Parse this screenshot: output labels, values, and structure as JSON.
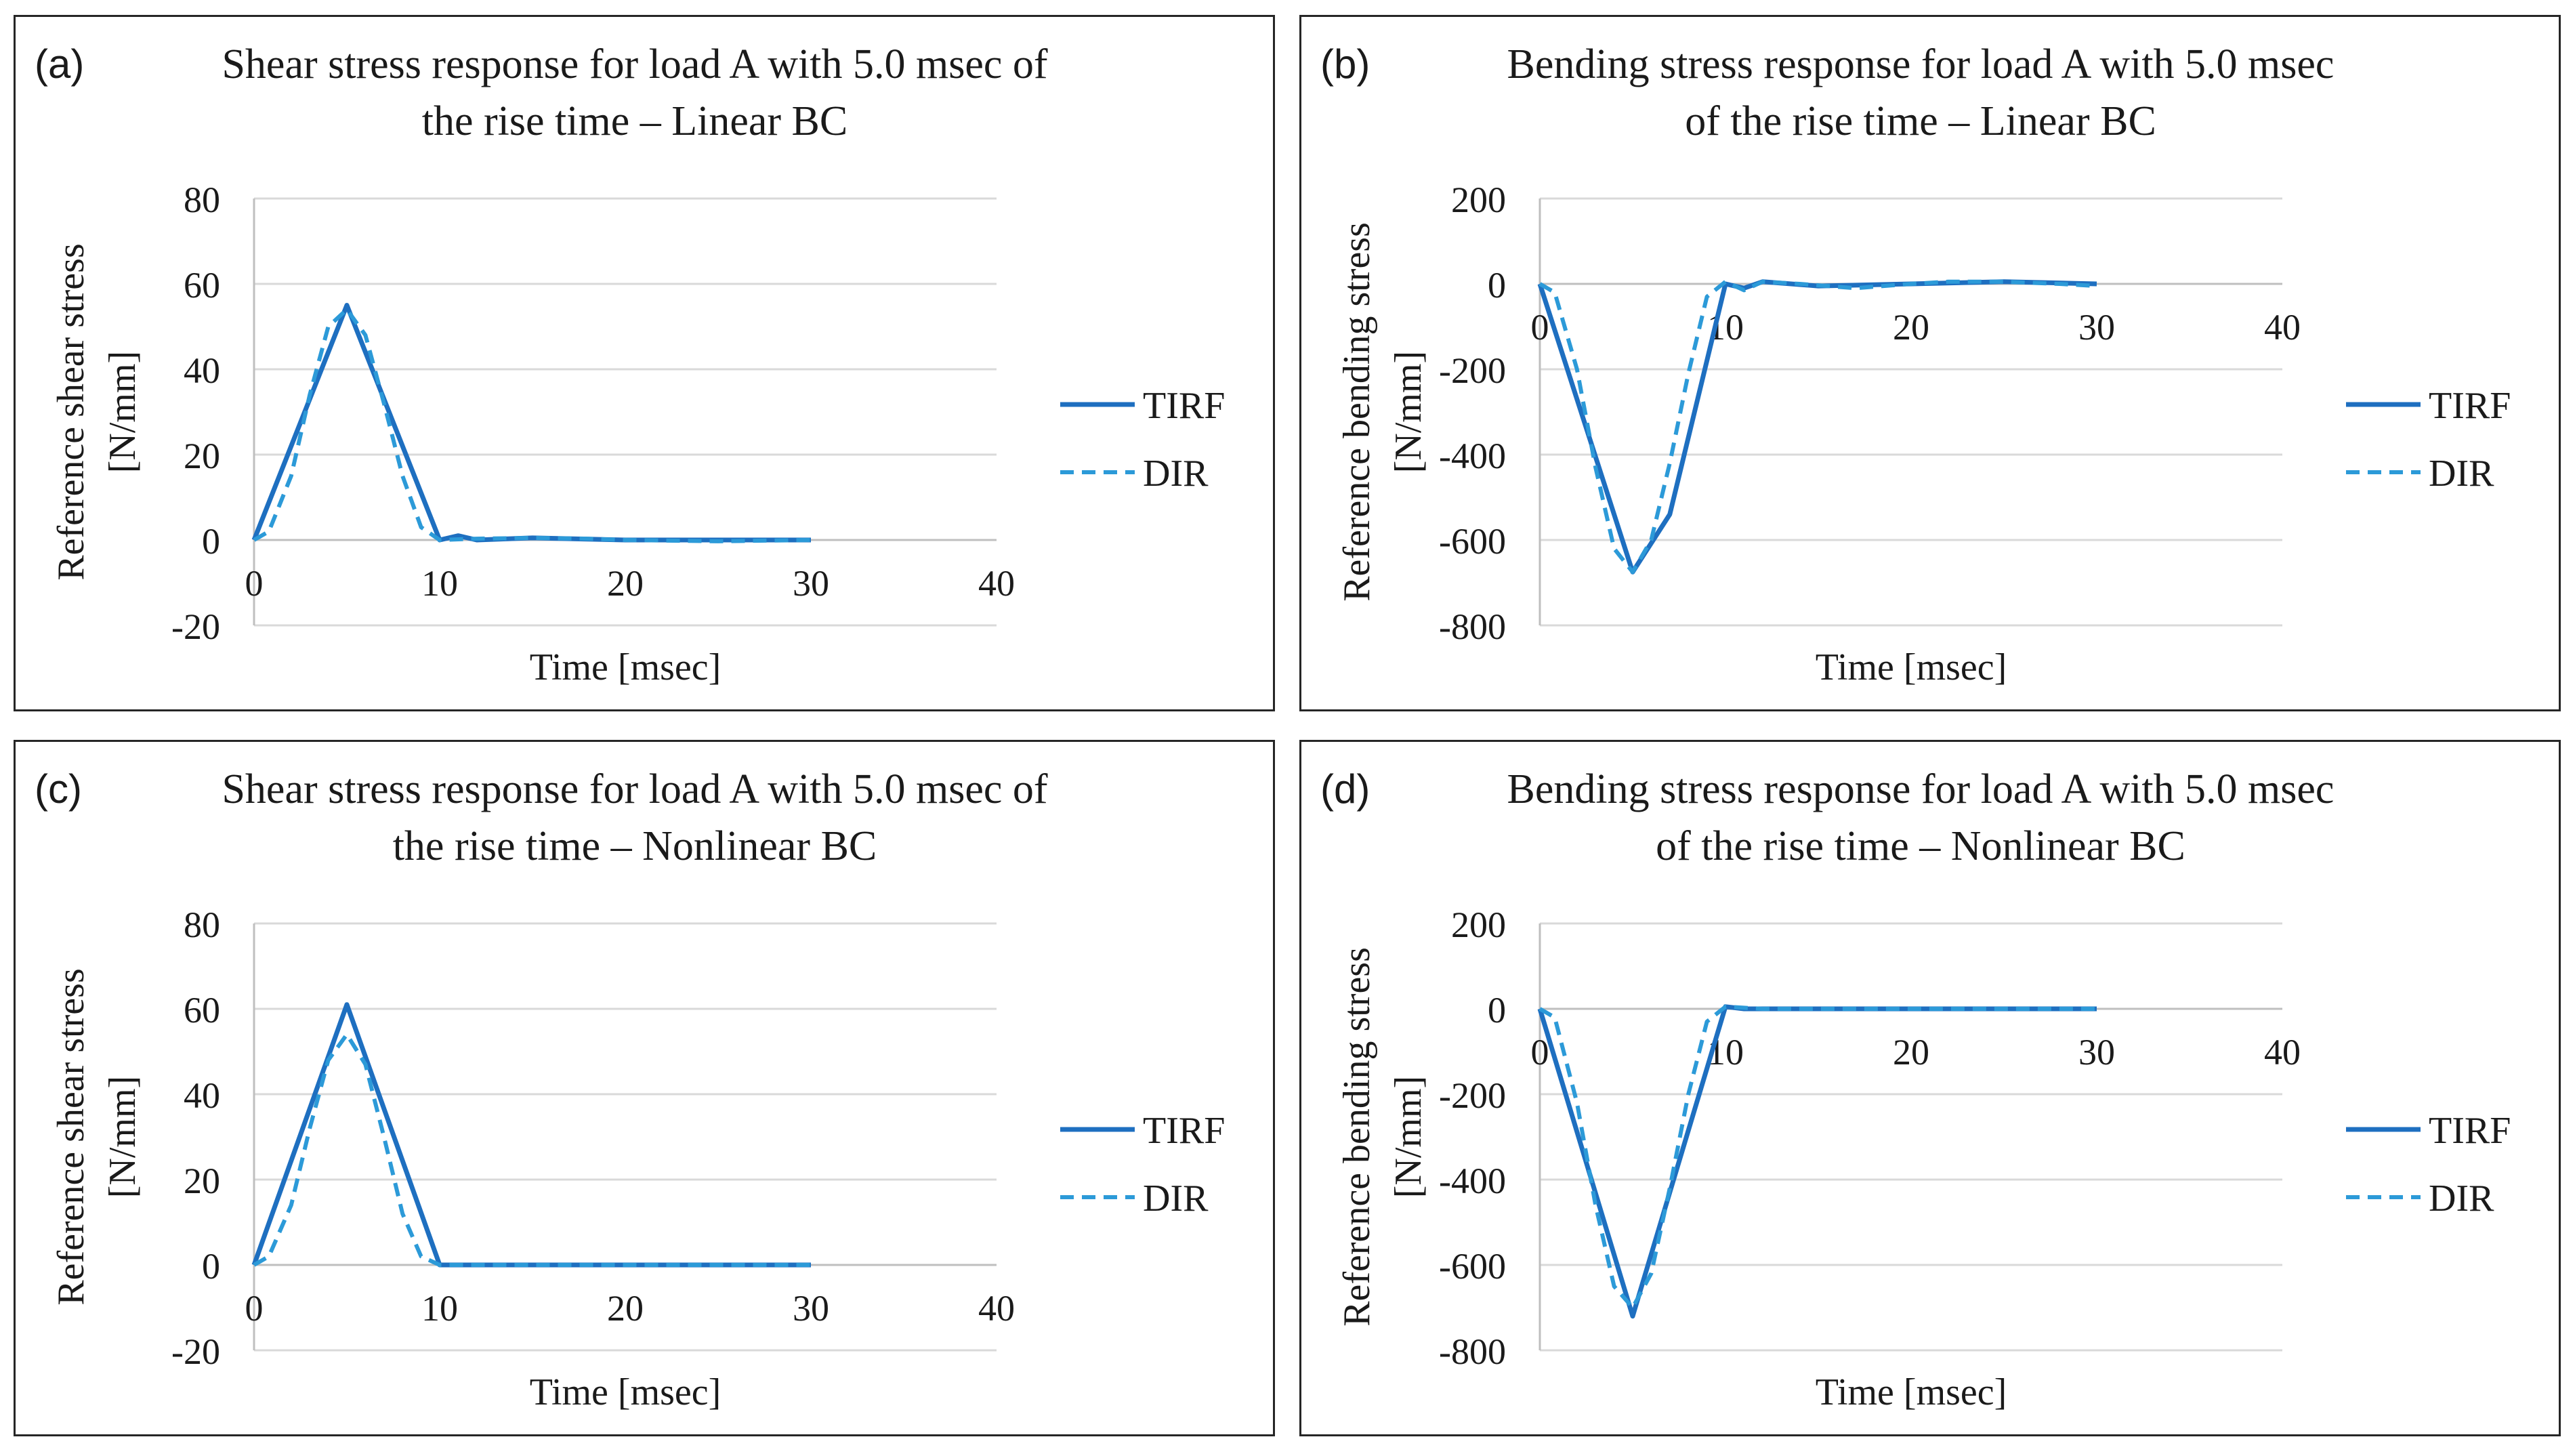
{
  "colors": {
    "tirf": "#1e6fc0",
    "dir": "#2c9ad8",
    "grid": "#d9d9d9",
    "axis": "#bfbfbf",
    "text": "#1a1a1a"
  },
  "chart_data": [
    {
      "panel": "(a)",
      "type": "line",
      "title_lines": [
        "Shear stress response for load A with 5.0 msec of",
        "the rise time – Linear BC"
      ],
      "xlabel": "Time [msec]",
      "ylabel_lines": [
        "Reference shear stress",
        "[N/mm]"
      ],
      "xlim": [
        0,
        40
      ],
      "ylim": [
        -20,
        80
      ],
      "xticks": [
        0,
        10,
        20,
        30,
        40
      ],
      "yticks": [
        -20,
        0,
        20,
        40,
        60,
        80
      ],
      "legend": [
        "TIRF",
        "DIR"
      ],
      "legend_position": "right",
      "series": [
        {
          "name": "TIRF",
          "style": "solid",
          "points": [
            [
              0,
              0
            ],
            [
              5,
              55
            ],
            [
              10,
              0
            ],
            [
              11,
              1
            ],
            [
              12,
              0
            ],
            [
              15,
              0.5
            ],
            [
              20,
              0
            ],
            [
              25,
              0
            ],
            [
              30,
              0
            ]
          ]
        },
        {
          "name": "DIR",
          "style": "dashed",
          "points": [
            [
              0,
              0
            ],
            [
              0.8,
              2
            ],
            [
              2,
              15
            ],
            [
              3,
              34
            ],
            [
              4,
              50
            ],
            [
              5,
              54
            ],
            [
              6,
              48
            ],
            [
              7,
              32
            ],
            [
              8,
              15
            ],
            [
              9,
              3
            ],
            [
              10,
              0
            ],
            [
              12,
              0.3
            ],
            [
              15,
              0.5
            ],
            [
              18,
              0.3
            ],
            [
              20,
              0
            ],
            [
              25,
              -0.3
            ],
            [
              30,
              0
            ]
          ]
        }
      ]
    },
    {
      "panel": "(b)",
      "type": "line",
      "title_lines": [
        "Bending stress response for load A with 5.0 msec",
        "of the rise time – Linear BC"
      ],
      "xlabel": "Time [msec]",
      "ylabel_lines": [
        "Reference bending stress",
        "[N/mm]"
      ],
      "xlim": [
        0,
        40
      ],
      "ylim": [
        -800,
        200
      ],
      "xticks": [
        0,
        10,
        20,
        30,
        40
      ],
      "yticks": [
        -800,
        -600,
        -400,
        -200,
        0,
        200
      ],
      "legend": [
        "TIRF",
        "DIR"
      ],
      "legend_position": "right",
      "series": [
        {
          "name": "TIRF",
          "style": "solid",
          "points": [
            [
              0,
              0
            ],
            [
              5,
              -675
            ],
            [
              7,
              -540
            ],
            [
              10,
              0
            ],
            [
              11,
              -10
            ],
            [
              12,
              5
            ],
            [
              15,
              -5
            ],
            [
              20,
              0
            ],
            [
              25,
              5
            ],
            [
              30,
              0
            ]
          ]
        },
        {
          "name": "DIR",
          "style": "dashed",
          "points": [
            [
              0,
              0
            ],
            [
              0.8,
              -20
            ],
            [
              2,
              -200
            ],
            [
              3,
              -430
            ],
            [
              4,
              -620
            ],
            [
              5,
              -675
            ],
            [
              6,
              -600
            ],
            [
              7,
              -420
            ],
            [
              8,
              -210
            ],
            [
              9,
              -30
            ],
            [
              10,
              5
            ],
            [
              11,
              -15
            ],
            [
              12,
              5
            ],
            [
              14,
              0
            ],
            [
              17,
              -10
            ],
            [
              20,
              0
            ],
            [
              22,
              5
            ],
            [
              25,
              5
            ],
            [
              28,
              0
            ],
            [
              30,
              -5
            ]
          ]
        }
      ]
    },
    {
      "panel": "(c)",
      "type": "line",
      "title_lines": [
        "Shear stress response for load A with 5.0 msec of",
        "the rise time – Nonlinear BC"
      ],
      "xlabel": "Time [msec]",
      "ylabel_lines": [
        "Reference shear stress",
        "[N/mm]"
      ],
      "xlim": [
        0,
        40
      ],
      "ylim": [
        -20,
        80
      ],
      "xticks": [
        0,
        10,
        20,
        30,
        40
      ],
      "yticks": [
        -20,
        0,
        20,
        40,
        60,
        80
      ],
      "legend": [
        "TIRF",
        "DIR"
      ],
      "legend_position": "right",
      "series": [
        {
          "name": "TIRF",
          "style": "solid",
          "points": [
            [
              0,
              0
            ],
            [
              5,
              61
            ],
            [
              10,
              0
            ],
            [
              15,
              0
            ],
            [
              20,
              0
            ],
            [
              25,
              0
            ],
            [
              30,
              0
            ]
          ]
        },
        {
          "name": "DIR",
          "style": "dashed",
          "points": [
            [
              0,
              0
            ],
            [
              0.8,
              2
            ],
            [
              2,
              14
            ],
            [
              3,
              32
            ],
            [
              4,
              48
            ],
            [
              5,
              54
            ],
            [
              6,
              47
            ],
            [
              7,
              30
            ],
            [
              8,
              12
            ],
            [
              9,
              2
            ],
            [
              10,
              0
            ],
            [
              15,
              0
            ],
            [
              20,
              0
            ],
            [
              25,
              0
            ],
            [
              30,
              0
            ]
          ]
        }
      ]
    },
    {
      "panel": "(d)",
      "type": "line",
      "title_lines": [
        "Bending stress response for load A with 5.0 msec",
        "of the rise time – Nonlinear BC"
      ],
      "xlabel": "Time [msec]",
      "ylabel_lines": [
        "Reference bending stress",
        "[N/mm]"
      ],
      "xlim": [
        0,
        40
      ],
      "ylim": [
        -800,
        200
      ],
      "xticks": [
        0,
        10,
        20,
        30,
        40
      ],
      "yticks": [
        -800,
        -600,
        -400,
        -200,
        0,
        200
      ],
      "legend": [
        "TIRF",
        "DIR"
      ],
      "legend_position": "right",
      "series": [
        {
          "name": "TIRF",
          "style": "solid",
          "points": [
            [
              0,
              0
            ],
            [
              5,
              -720
            ],
            [
              10,
              5
            ],
            [
              11,
              0
            ],
            [
              15,
              0
            ],
            [
              20,
              0
            ],
            [
              25,
              0
            ],
            [
              30,
              0
            ]
          ]
        },
        {
          "name": "DIR",
          "style": "dashed",
          "points": [
            [
              0,
              0
            ],
            [
              0.8,
              -20
            ],
            [
              2,
              -220
            ],
            [
              3,
              -460
            ],
            [
              4,
              -650
            ],
            [
              5,
              -700
            ],
            [
              6,
              -620
            ],
            [
              7,
              -420
            ],
            [
              8,
              -200
            ],
            [
              9,
              -30
            ],
            [
              10,
              5
            ],
            [
              12,
              0
            ],
            [
              17,
              0
            ],
            [
              20,
              0
            ],
            [
              25,
              0
            ],
            [
              30,
              0
            ]
          ]
        }
      ]
    }
  ]
}
